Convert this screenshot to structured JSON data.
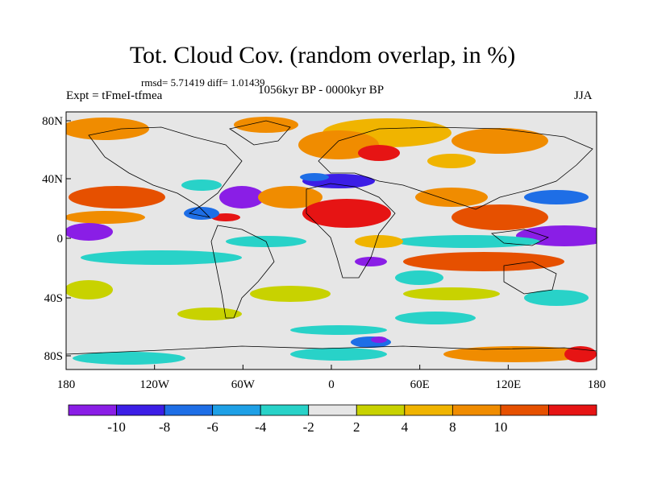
{
  "figure": {
    "title": "Tot. Cloud Cov. (random overlap, in %)",
    "stats": "rmsd= 5.71419 diff= 1.01439",
    "expt": "Expt = tFmeI-tfmea",
    "period": "1056kyr BP - 0000kyr BP",
    "season": "JJA"
  },
  "axes": {
    "lat_ticks": [
      "80N",
      "40N",
      "0",
      "40S",
      "80S"
    ],
    "lon_ticks": [
      "180",
      "120W",
      "60W",
      "0",
      "60E",
      "120E",
      "180"
    ]
  },
  "colorbar": {
    "labels": [
      "-10",
      "-8",
      "-6",
      "-4",
      "-2",
      "2",
      "4",
      "8",
      "10"
    ],
    "colors": [
      "#8a1ee6",
      "#3c1ee6",
      "#1e6ee6",
      "#1ea0e6",
      "#28d2c8",
      "#e6e6e6",
      "#c8d200",
      "#f0b400",
      "#f08c00",
      "#e65000",
      "#e61414"
    ]
  },
  "palette": {
    "land_outline": "#000000",
    "ocean_neutral": "#e6e6e6"
  }
}
